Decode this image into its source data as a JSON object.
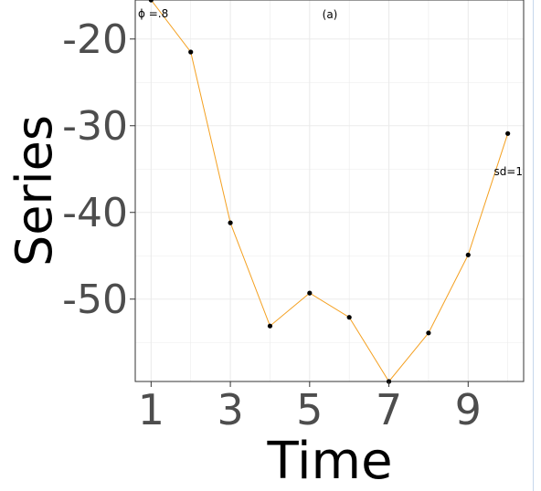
{
  "chart_data": {
    "type": "line",
    "panel_label": "(a)",
    "xlabel": "Time",
    "ylabel": "Series",
    "xlim": [
      0.6,
      10.4
    ],
    "ylim": [
      -59.5,
      -15.5
    ],
    "xticks": [
      1,
      3,
      5,
      7,
      9
    ],
    "yticks": [
      -20,
      -30,
      -40,
      -50
    ],
    "ytick_labels": [
      "-20",
      "-30",
      "-40",
      "-50"
    ],
    "xtick_labels": [
      "1",
      "3",
      "5",
      "7",
      "9"
    ],
    "grid": true,
    "legend": "none",
    "series": [
      {
        "x": [
          1,
          2,
          3,
          4,
          5,
          6,
          7,
          8,
          9,
          10
        ],
        "y": [
          -15.5,
          -21.5,
          -41.2,
          -53.1,
          -49.3,
          -52.1,
          -59.5,
          -53.9,
          -44.9,
          -30.9
        ],
        "color": "#f4a020"
      }
    ],
    "annotations": {
      "phi": "ϕ =.8",
      "sd": "sd=1"
    }
  },
  "colors": {
    "line": "#f4a020",
    "point": "#000000",
    "grid": "#ebebeb",
    "tick_text": "#4d4d4d",
    "frame": "#c6d7ec"
  }
}
